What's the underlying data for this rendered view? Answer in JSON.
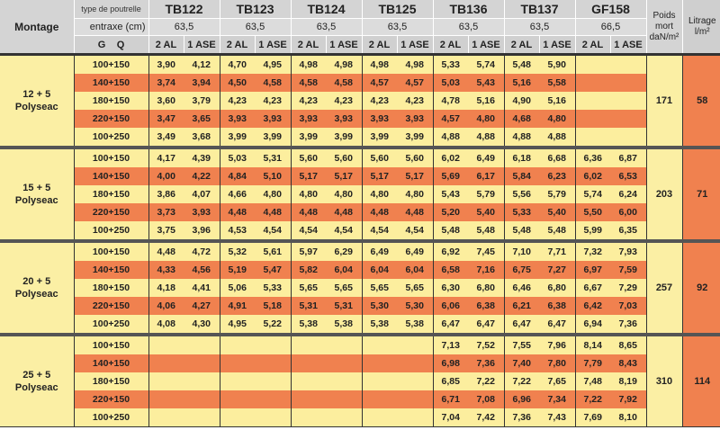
{
  "header": {
    "montage": "Montage",
    "type_label": "type de poutrelle",
    "entraxe_label": "entraxe (cm)",
    "g_label": "G",
    "q_label": "Q",
    "poids_label": [
      "Poids",
      "mort",
      "daN/m²"
    ],
    "litrage_label": [
      "Litrage",
      "l/m²"
    ],
    "beams": [
      {
        "name": "TB122",
        "entraxe": "63,5",
        "sub": [
          "2 AL",
          "1 ASE"
        ]
      },
      {
        "name": "TB123",
        "entraxe": "63,5",
        "sub": [
          "2 AL",
          "1 ASE"
        ]
      },
      {
        "name": "TB124",
        "entraxe": "63,5",
        "sub": [
          "2 AL",
          "1 ASE"
        ]
      },
      {
        "name": "TB125",
        "entraxe": "63,5",
        "sub": [
          "2 AL",
          "1 ASE"
        ]
      },
      {
        "name": "TB136",
        "entraxe": "63,5",
        "sub": [
          "2 AL",
          "1 ASE"
        ]
      },
      {
        "name": "TB137",
        "entraxe": "63,5",
        "sub": [
          "2 AL",
          "1 ASE"
        ]
      },
      {
        "name": "GF158",
        "entraxe": "66,5",
        "sub": [
          "2 AL",
          "1 ASE"
        ]
      }
    ]
  },
  "colors": {
    "yellow": "#fcee9e",
    "orange": "#f0814f",
    "header_gray": "#d4d4d4"
  },
  "sections": [
    {
      "label": [
        "12 + 5",
        "Polyseac"
      ],
      "poids": "171",
      "litrage": "58",
      "rows": [
        {
          "load": "100+150",
          "values": [
            "3,90",
            "4,12",
            "4,70",
            "4,95",
            "4,98",
            "4,98",
            "4,98",
            "4,98",
            "5,33",
            "5,74",
            "5,48",
            "5,90",
            "",
            ""
          ]
        },
        {
          "load": "140+150",
          "values": [
            "3,74",
            "3,94",
            "4,50",
            "4,58",
            "4,58",
            "4,58",
            "4,57",
            "4,57",
            "5,03",
            "5,43",
            "5,16",
            "5,58",
            "",
            ""
          ]
        },
        {
          "load": "180+150",
          "values": [
            "3,60",
            "3,79",
            "4,23",
            "4,23",
            "4,23",
            "4,23",
            "4,23",
            "4,23",
            "4,78",
            "5,16",
            "4,90",
            "5,16",
            "",
            ""
          ]
        },
        {
          "load": "220+150",
          "values": [
            "3,47",
            "3,65",
            "3,93",
            "3,93",
            "3,93",
            "3,93",
            "3,93",
            "3,93",
            "4,57",
            "4,80",
            "4,68",
            "4,80",
            "",
            ""
          ]
        },
        {
          "load": "100+250",
          "values": [
            "3,49",
            "3,68",
            "3,99",
            "3,99",
            "3,99",
            "3,99",
            "3,99",
            "3,99",
            "4,88",
            "4,88",
            "4,88",
            "4,88",
            "",
            ""
          ]
        }
      ]
    },
    {
      "label": [
        "15 + 5",
        "Polyseac"
      ],
      "poids": "203",
      "litrage": "71",
      "rows": [
        {
          "load": "100+150",
          "values": [
            "4,17",
            "4,39",
            "5,03",
            "5,31",
            "5,60",
            "5,60",
            "5,60",
            "5,60",
            "6,02",
            "6,49",
            "6,18",
            "6,68",
            "6,36",
            "6,87"
          ]
        },
        {
          "load": "140+150",
          "values": [
            "4,00",
            "4,22",
            "4,84",
            "5,10",
            "5,17",
            "5,17",
            "5,17",
            "5,17",
            "5,69",
            "6,17",
            "5,84",
            "6,23",
            "6,02",
            "6,53"
          ]
        },
        {
          "load": "180+150",
          "values": [
            "3,86",
            "4,07",
            "4,66",
            "4,80",
            "4,80",
            "4,80",
            "4,80",
            "4,80",
            "5,43",
            "5,79",
            "5,56",
            "5,79",
            "5,74",
            "6,24"
          ]
        },
        {
          "load": "220+150",
          "values": [
            "3,73",
            "3,93",
            "4,48",
            "4,48",
            "4,48",
            "4,48",
            "4,48",
            "4,48",
            "5,20",
            "5,40",
            "5,33",
            "5,40",
            "5,50",
            "6,00"
          ]
        },
        {
          "load": "100+250",
          "values": [
            "3,75",
            "3,96",
            "4,53",
            "4,54",
            "4,54",
            "4,54",
            "4,54",
            "4,54",
            "5,48",
            "5,48",
            "5,48",
            "5,48",
            "5,99",
            "6,35"
          ]
        }
      ]
    },
    {
      "label": [
        "20 + 5",
        "Polyseac"
      ],
      "poids": "257",
      "litrage": "92",
      "rows": [
        {
          "load": "100+150",
          "values": [
            "4,48",
            "4,72",
            "5,32",
            "5,61",
            "5,97",
            "6,29",
            "6,49",
            "6,49",
            "6,92",
            "7,45",
            "7,10",
            "7,71",
            "7,32",
            "7,93"
          ]
        },
        {
          "load": "140+150",
          "values": [
            "4,33",
            "4,56",
            "5,19",
            "5,47",
            "5,82",
            "6,04",
            "6,04",
            "6,04",
            "6,58",
            "7,16",
            "6,75",
            "7,27",
            "6,97",
            "7,59"
          ]
        },
        {
          "load": "180+150",
          "values": [
            "4,18",
            "4,41",
            "5,06",
            "5,33",
            "5,65",
            "5,65",
            "5,65",
            "5,65",
            "6,30",
            "6,80",
            "6,46",
            "6,80",
            "6,67",
            "7,29"
          ]
        },
        {
          "load": "220+150",
          "values": [
            "4,06",
            "4,27",
            "4,91",
            "5,18",
            "5,31",
            "5,31",
            "5,30",
            "5,30",
            "6,06",
            "6,38",
            "6,21",
            "6,38",
            "6,42",
            "7,03"
          ]
        },
        {
          "load": "100+250",
          "values": [
            "4,08",
            "4,30",
            "4,95",
            "5,22",
            "5,38",
            "5,38",
            "5,38",
            "5,38",
            "6,47",
            "6,47",
            "6,47",
            "6,47",
            "6,94",
            "7,36"
          ]
        }
      ]
    },
    {
      "label": [
        "25 + 5",
        "Polyseac"
      ],
      "poids": "310",
      "litrage": "114",
      "rows": [
        {
          "load": "100+150",
          "values": [
            "",
            "",
            "",
            "",
            "",
            "",
            "",
            "",
            "7,13",
            "7,52",
            "7,55",
            "7,96",
            "8,14",
            "8,65"
          ]
        },
        {
          "load": "140+150",
          "values": [
            "",
            "",
            "",
            "",
            "",
            "",
            "",
            "",
            "6,98",
            "7,36",
            "7,40",
            "7,80",
            "7,79",
            "8,43"
          ]
        },
        {
          "load": "180+150",
          "values": [
            "",
            "",
            "",
            "",
            "",
            "",
            "",
            "",
            "6,85",
            "7,22",
            "7,22",
            "7,65",
            "7,48",
            "8,19"
          ]
        },
        {
          "load": "220+150",
          "values": [
            "",
            "",
            "",
            "",
            "",
            "",
            "",
            "",
            "6,71",
            "7,08",
            "6,96",
            "7,34",
            "7,22",
            "7,92"
          ]
        },
        {
          "load": "100+250",
          "values": [
            "",
            "",
            "",
            "",
            "",
            "",
            "",
            "",
            "7,04",
            "7,42",
            "7,36",
            "7,43",
            "7,69",
            "8,10"
          ]
        }
      ]
    }
  ]
}
